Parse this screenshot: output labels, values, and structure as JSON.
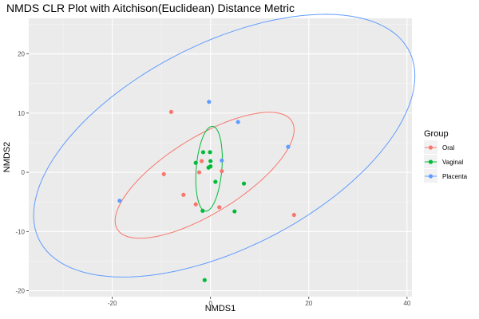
{
  "chart_data": {
    "type": "scatter",
    "title": "NMDS CLR Plot with Aitchison(Euclidean) Distance Metric",
    "xlabel": "NMDS1",
    "ylabel": "NMDS2",
    "xlim": [
      -37,
      41
    ],
    "ylim": [
      -21,
      26
    ],
    "x_ticks": [
      -20,
      0,
      20,
      40
    ],
    "y_ticks": [
      -20,
      -10,
      0,
      10,
      20
    ],
    "x_tick_labels": [
      "-20",
      "0",
      "20",
      "40"
    ],
    "y_tick_labels": [
      "-20",
      "-10",
      "0",
      "10",
      "20"
    ],
    "grid": true,
    "legend": {
      "title": "Group",
      "position": "right"
    },
    "series": [
      {
        "name": "Oral",
        "color": "#F8766D",
        "points": [
          {
            "x": -8,
            "y": 10.2
          },
          {
            "x": -9.5,
            "y": -0.3
          },
          {
            "x": -5.5,
            "y": -3.8
          },
          {
            "x": -3,
            "y": -5.4
          },
          {
            "x": -2.3,
            "y": 0
          },
          {
            "x": -1.8,
            "y": 1.9
          },
          {
            "x": 2.3,
            "y": 0.2
          },
          {
            "x": 1.8,
            "y": -5.9
          },
          {
            "x": 17,
            "y": -7.2
          }
        ],
        "ellipse": {
          "cx": -1.2,
          "cy": -0.5,
          "rx": 20,
          "ry": 6.7,
          "angle_deg": 26
        }
      },
      {
        "name": "Vaginal",
        "color": "#00BA38",
        "points": [
          {
            "x": -1.5,
            "y": 3.4
          },
          {
            "x": -0.1,
            "y": 3.4
          },
          {
            "x": -3,
            "y": 1.6
          },
          {
            "x": 0,
            "y": 1.9
          },
          {
            "x": -0.4,
            "y": 0.8
          },
          {
            "x": 0,
            "y": 1
          },
          {
            "x": 1,
            "y": -1.6
          },
          {
            "x": 6.8,
            "y": -1.9
          },
          {
            "x": -1.6,
            "y": -6.5
          },
          {
            "x": 4.9,
            "y": -6.6
          },
          {
            "x": -1.2,
            "y": -18.2
          }
        ],
        "ellipse": {
          "cx": -0.3,
          "cy": 0.6,
          "rx": 7.2,
          "ry": 2.6,
          "angle_deg": 84
        }
      },
      {
        "name": "Placenta",
        "color": "#619CFF",
        "points": [
          {
            "x": -0.3,
            "y": 11.9
          },
          {
            "x": 5.6,
            "y": 8.5
          },
          {
            "x": 15.8,
            "y": 4.3
          },
          {
            "x": 2.3,
            "y": 2
          },
          {
            "x": -18.5,
            "y": -4.8
          }
        ],
        "ellipse": {
          "cx": 2.8,
          "cy": 4.5,
          "rx": 41,
          "ry": 17.8,
          "angle_deg": 21
        }
      }
    ]
  }
}
